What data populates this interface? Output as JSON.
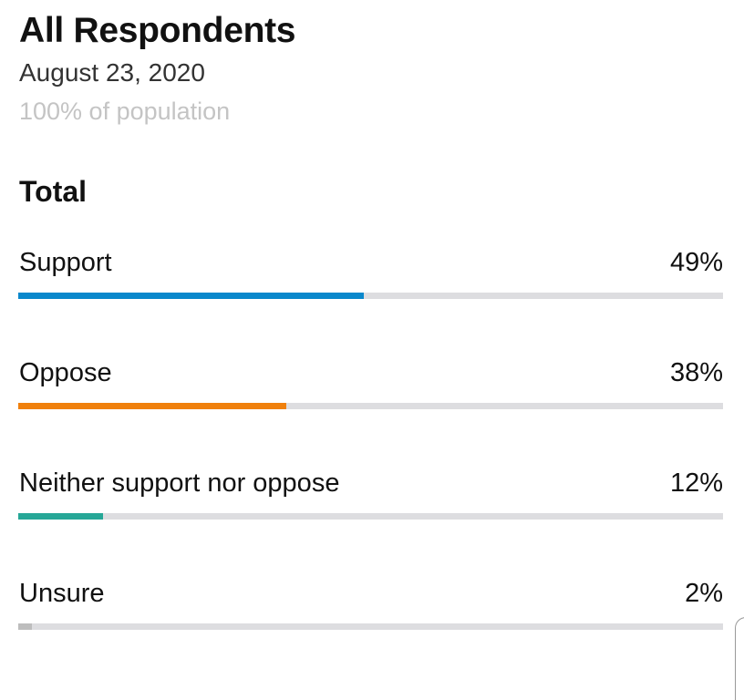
{
  "header": {
    "title": "All Respondents",
    "date": "August 23, 2020",
    "population": "100% of population"
  },
  "section_title": "Total",
  "results": [
    {
      "label": "Support",
      "value_text": "49%",
      "value": 49,
      "color": "#0a88cc"
    },
    {
      "label": "Oppose",
      "value_text": "38%",
      "value": 38,
      "color": "#f0800c"
    },
    {
      "label": "Neither support nor oppose",
      "value_text": "12%",
      "value": 12,
      "color": "#26a797"
    },
    {
      "label": "Unsure",
      "value_text": "2%",
      "value": 2,
      "color": "#bdbdbd"
    }
  ],
  "track_color": "#dddde0"
}
